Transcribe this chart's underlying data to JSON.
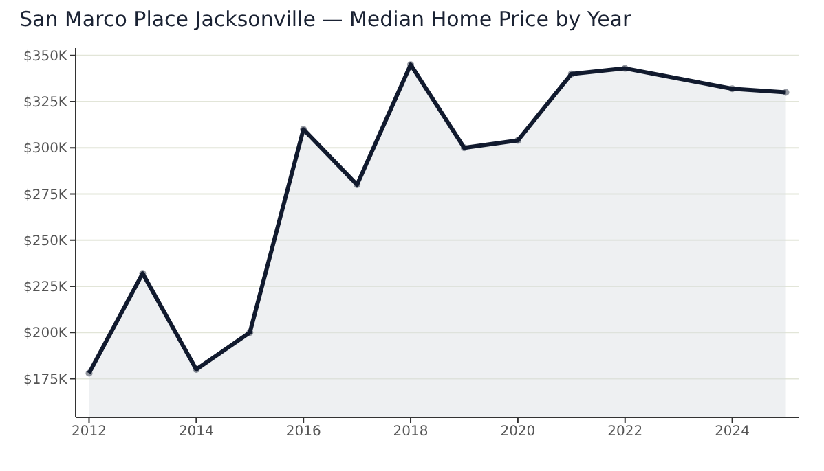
{
  "chart_data": {
    "type": "area",
    "title": "San Marco Place Jacksonville — Median Home Price by Year",
    "x": [
      2012,
      2013,
      2014,
      2015,
      2016,
      2017,
      2018,
      2019,
      2020,
      2021,
      2022,
      2024,
      2025
    ],
    "series": [
      {
        "color": "#111a2e",
        "values": [
          178,
          232,
          180,
          200,
          310,
          280,
          345,
          300,
          304,
          340,
          343,
          332,
          330
        ]
      }
    ],
    "xlim": [
      2011.75,
      2025.25
    ],
    "xticks": [
      2012,
      2014,
      2016,
      2018,
      2020,
      2022,
      2024
    ],
    "ylim": [
      154,
      354
    ],
    "yticks": [
      {
        "value": 175,
        "label": "$175K"
      },
      {
        "value": 200,
        "label": "$200K"
      },
      {
        "value": 225,
        "label": "$225K"
      },
      {
        "value": 250,
        "label": "$250K"
      },
      {
        "value": 275,
        "label": "$275K"
      },
      {
        "value": 300,
        "label": "$300K"
      },
      {
        "value": 325,
        "label": "$325K"
      },
      {
        "value": 350,
        "label": "$350K"
      }
    ],
    "grid": "y",
    "marker": "circle",
    "line_style": "solid"
  }
}
